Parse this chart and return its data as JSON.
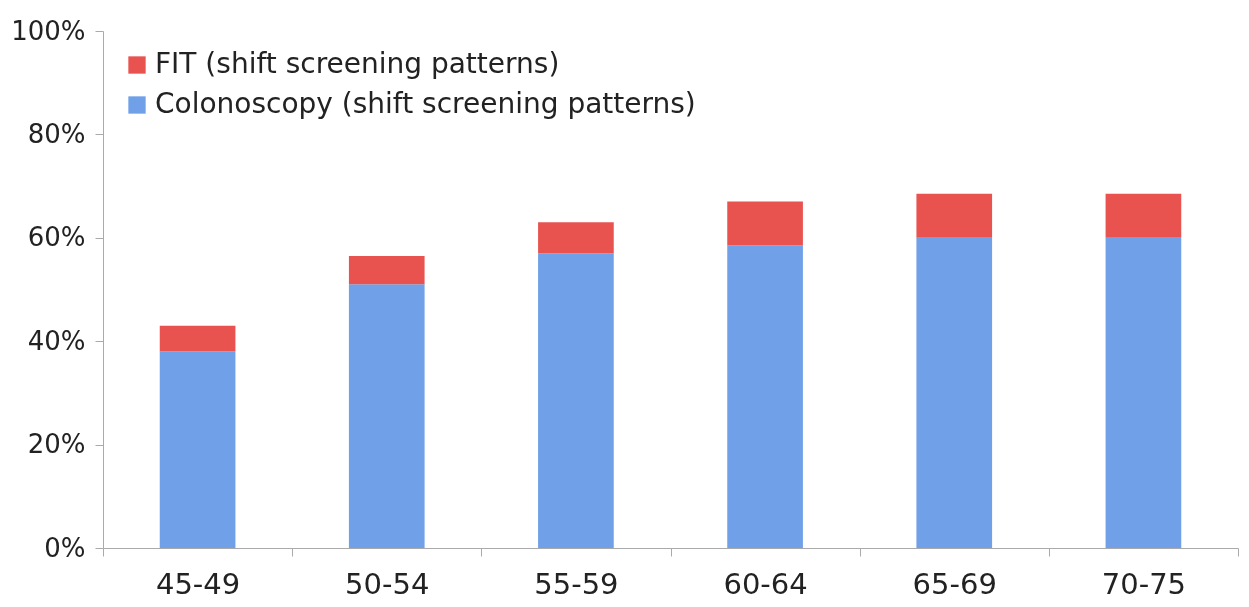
{
  "chart_data": {
    "type": "bar",
    "stacked": true,
    "categories": [
      "45-49",
      "50-54",
      "55-59",
      "60-64",
      "65-69",
      "70-75"
    ],
    "series": [
      {
        "name": "Colonoscopy (shift screening patterns)",
        "color": "#6fa0e8",
        "values": [
          38,
          51,
          57,
          58.5,
          60,
          60
        ]
      },
      {
        "name": "FIT (shift screening patterns)",
        "color": "#e8534f",
        "values": [
          5,
          5.5,
          6,
          8.5,
          8.5,
          8.5
        ]
      }
    ],
    "ylim": [
      0,
      100
    ],
    "yticks": [
      {
        "value": 0,
        "label": "0%"
      },
      {
        "value": 20,
        "label": "20%"
      },
      {
        "value": 40,
        "label": "40%"
      },
      {
        "value": 60,
        "label": "60%"
      },
      {
        "value": 80,
        "label": "80%"
      },
      {
        "value": 100,
        "label": "100%"
      }
    ],
    "grid": false,
    "legend": "top left"
  }
}
